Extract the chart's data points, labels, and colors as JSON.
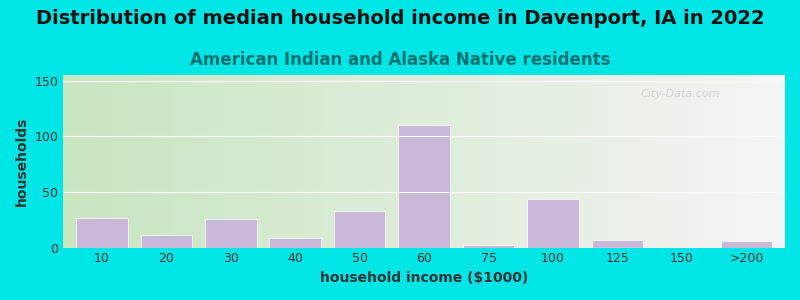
{
  "title": "Distribution of median household income in Davenport, IA in 2022",
  "subtitle": "American Indian and Alaska Native residents",
  "xlabel": "household income ($1000)",
  "ylabel": "households",
  "bar_labels": [
    "10",
    "20",
    "30",
    "40",
    "50",
    "60",
    "75",
    "100",
    "125",
    "150",
    ">200"
  ],
  "bar_values": [
    27,
    11,
    26,
    9,
    33,
    110,
    2,
    44,
    7,
    0,
    6
  ],
  "bar_color": "#c9b8d8",
  "bar_edgecolor": "#ffffff",
  "yticks": [
    0,
    50,
    100,
    150
  ],
  "ylim": [
    0,
    155
  ],
  "background_outer": "#00e5e5",
  "background_plot_left": "#c8e6c0",
  "background_plot_right": "#f5f5f5",
  "title_fontsize": 14,
  "subtitle_fontsize": 12,
  "subtitle_color": "#007070",
  "axis_label_fontsize": 10,
  "watermark": "City-Data.com"
}
